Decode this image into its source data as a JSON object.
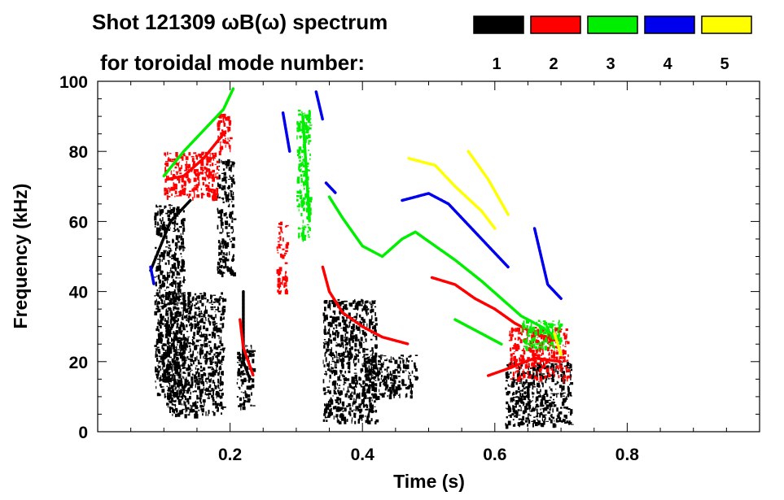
{
  "chart_data": {
    "type": "heatmap",
    "title_line1": "Shot 121309 ωB(ω) spectrum",
    "title_line2": "for toroidal mode number:",
    "xlabel": "Time (s)",
    "ylabel": "Frequency (kHz)",
    "xlim": [
      0.0,
      1.0
    ],
    "ylim": [
      0,
      100
    ],
    "xticks": [
      0.2,
      0.4,
      0.6,
      0.8
    ],
    "xtick_labels": [
      "0.2",
      "0.4",
      "0.6",
      "0.8"
    ],
    "yticks": [
      0,
      20,
      40,
      60,
      80,
      100
    ],
    "ytick_labels": [
      "0",
      "20",
      "40",
      "60",
      "80",
      "100"
    ],
    "legend": [
      {
        "mode": "1",
        "color": "#000000"
      },
      {
        "mode": "2",
        "color": "#ff0000"
      },
      {
        "mode": "3",
        "color": "#00ee00"
      },
      {
        "mode": "4",
        "color": "#0000ee"
      },
      {
        "mode": "5",
        "color": "#ffff00"
      }
    ],
    "series": [
      {
        "mode": "1",
        "name": "n=1",
        "color": "#000000",
        "blobs": [
          {
            "t0": 0.085,
            "t1": 0.13,
            "f0": 10,
            "f1": 65
          },
          {
            "t0": 0.1,
            "t1": 0.19,
            "f0": 5,
            "f1": 40
          },
          {
            "t0": 0.18,
            "t1": 0.205,
            "f0": 45,
            "f1": 78
          },
          {
            "t0": 0.21,
            "t1": 0.235,
            "f0": 7,
            "f1": 25
          },
          {
            "t0": 0.34,
            "t1": 0.42,
            "f0": 3,
            "f1": 38
          },
          {
            "t0": 0.4,
            "t1": 0.48,
            "f0": 10,
            "f1": 22
          },
          {
            "t0": 0.615,
            "t1": 0.715,
            "f0": 2,
            "f1": 20
          }
        ],
        "tracks": [
          [
            [
              0.22,
              40
            ],
            [
              0.22,
              20
            ],
            [
              0.23,
              15
            ]
          ],
          [
            [
              0.08,
              46
            ],
            [
              0.11,
              60
            ],
            [
              0.14,
              66
            ]
          ]
        ]
      },
      {
        "mode": "2",
        "name": "n=2",
        "color": "#ff0000",
        "blobs": [
          {
            "t0": 0.1,
            "t1": 0.18,
            "f0": 67,
            "f1": 80
          },
          {
            "t0": 0.18,
            "t1": 0.2,
            "f0": 80,
            "f1": 91
          },
          {
            "t0": 0.27,
            "t1": 0.285,
            "f0": 40,
            "f1": 60
          },
          {
            "t0": 0.62,
            "t1": 0.71,
            "f0": 15,
            "f1": 30
          }
        ],
        "tracks": [
          [
            [
              0.105,
              72
            ],
            [
              0.13,
              73
            ],
            [
              0.16,
              78
            ],
            [
              0.19,
              85
            ]
          ],
          [
            [
              0.215,
              32
            ],
            [
              0.22,
              24
            ],
            [
              0.235,
              16
            ]
          ],
          [
            [
              0.34,
              47
            ],
            [
              0.35,
              40
            ],
            [
              0.37,
              34
            ],
            [
              0.4,
              30
            ],
            [
              0.43,
              27
            ],
            [
              0.47,
              25
            ]
          ],
          [
            [
              0.505,
              44
            ],
            [
              0.54,
              42
            ],
            [
              0.57,
              38
            ],
            [
              0.6,
              35
            ],
            [
              0.63,
              31
            ],
            [
              0.66,
              28
            ],
            [
              0.7,
              26
            ]
          ],
          [
            [
              0.59,
              16
            ],
            [
              0.62,
              18
            ],
            [
              0.66,
              21
            ],
            [
              0.7,
              20
            ]
          ]
        ]
      },
      {
        "mode": "3",
        "name": "n=3",
        "color": "#00ee00",
        "blobs": [
          {
            "t0": 0.3,
            "t1": 0.32,
            "f0": 55,
            "f1": 92
          },
          {
            "t0": 0.64,
            "t1": 0.7,
            "f0": 24,
            "f1": 32
          }
        ],
        "tracks": [
          [
            [
              0.1,
              73
            ],
            [
              0.13,
              80
            ],
            [
              0.16,
              86
            ],
            [
              0.19,
              92
            ],
            [
              0.205,
              98
            ]
          ],
          [
            [
              0.35,
              67
            ],
            [
              0.37,
              61
            ],
            [
              0.4,
              53
            ],
            [
              0.43,
              50
            ],
            [
              0.46,
              55
            ],
            [
              0.48,
              57
            ],
            [
              0.51,
              53
            ],
            [
              0.54,
              49
            ],
            [
              0.58,
              43
            ],
            [
              0.61,
              38
            ],
            [
              0.64,
              33
            ],
            [
              0.67,
              30
            ],
            [
              0.7,
              26
            ]
          ],
          [
            [
              0.31,
              90
            ],
            [
              0.315,
              75
            ],
            [
              0.32,
              60
            ]
          ],
          [
            [
              0.54,
              32
            ],
            [
              0.58,
              28
            ],
            [
              0.61,
              25
            ]
          ]
        ]
      },
      {
        "mode": "4",
        "name": "n=4",
        "color": "#0000ee",
        "blobs": [],
        "tracks": [
          [
            [
              0.08,
              47
            ],
            [
              0.085,
              42
            ]
          ],
          [
            [
              0.33,
              97
            ],
            [
              0.34,
              89
            ]
          ],
          [
            [
              0.345,
              71
            ],
            [
              0.36,
              68
            ]
          ],
          [
            [
              0.46,
              66
            ],
            [
              0.5,
              68
            ],
            [
              0.53,
              65
            ],
            [
              0.56,
              59
            ],
            [
              0.59,
              53
            ],
            [
              0.62,
              47
            ]
          ],
          [
            [
              0.66,
              58
            ],
            [
              0.68,
              42
            ],
            [
              0.7,
              38
            ]
          ],
          [
            [
              0.28,
              91
            ],
            [
              0.29,
              80
            ]
          ]
        ]
      },
      {
        "mode": "5",
        "name": "n=5",
        "color": "#ffff00",
        "blobs": [],
        "tracks": [
          [
            [
              0.47,
              78
            ],
            [
              0.51,
              76
            ],
            [
              0.54,
              70
            ],
            [
              0.58,
              63
            ],
            [
              0.6,
              58
            ]
          ],
          [
            [
              0.56,
              80
            ],
            [
              0.59,
              72
            ],
            [
              0.62,
              62
            ]
          ],
          [
            [
              0.69,
              28
            ],
            [
              0.7,
              22
            ]
          ]
        ]
      }
    ]
  }
}
